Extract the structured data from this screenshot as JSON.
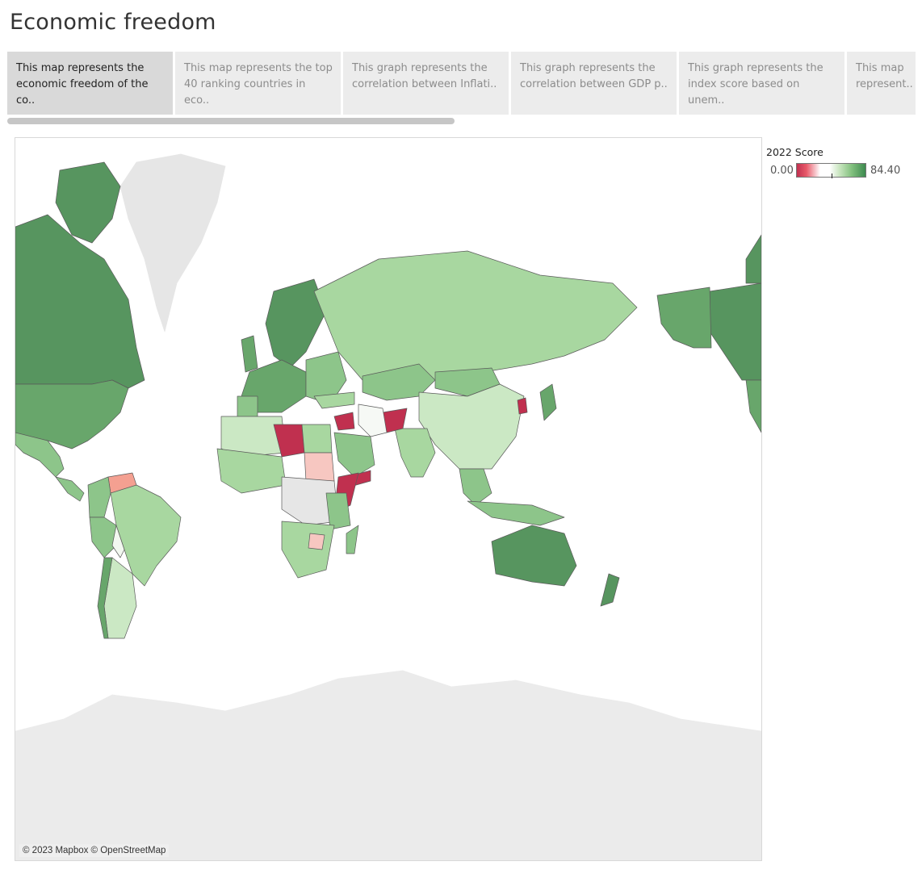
{
  "page": {
    "title": "Economic freedom"
  },
  "tabs": [
    {
      "label": "This map represents the economic freedom of the co..",
      "active": true
    },
    {
      "label": "This map represents the top 40 ranking countries in eco..",
      "active": false
    },
    {
      "label": "This graph represents the correlation between Inflati..",
      "active": false
    },
    {
      "label": "This graph represents the correlation between GDP p..",
      "active": false
    },
    {
      "label": "This graph represents the index score based on unem..",
      "active": false
    },
    {
      "label": "This map represent..",
      "active": false
    }
  ],
  "legend": {
    "title": "2022 Score",
    "min_label": "0.00",
    "max_label": "84.40"
  },
  "map": {
    "attribution": "© 2023 Mapbox © OpenStreetMap",
    "colors": {
      "ocean": "#ffffff",
      "no_data": "#e6e6e6",
      "border": "#555555",
      "scale_low": "#c0304f",
      "scale_mid": "#ffffff",
      "scale_high": "#3d8a4f"
    }
  }
}
